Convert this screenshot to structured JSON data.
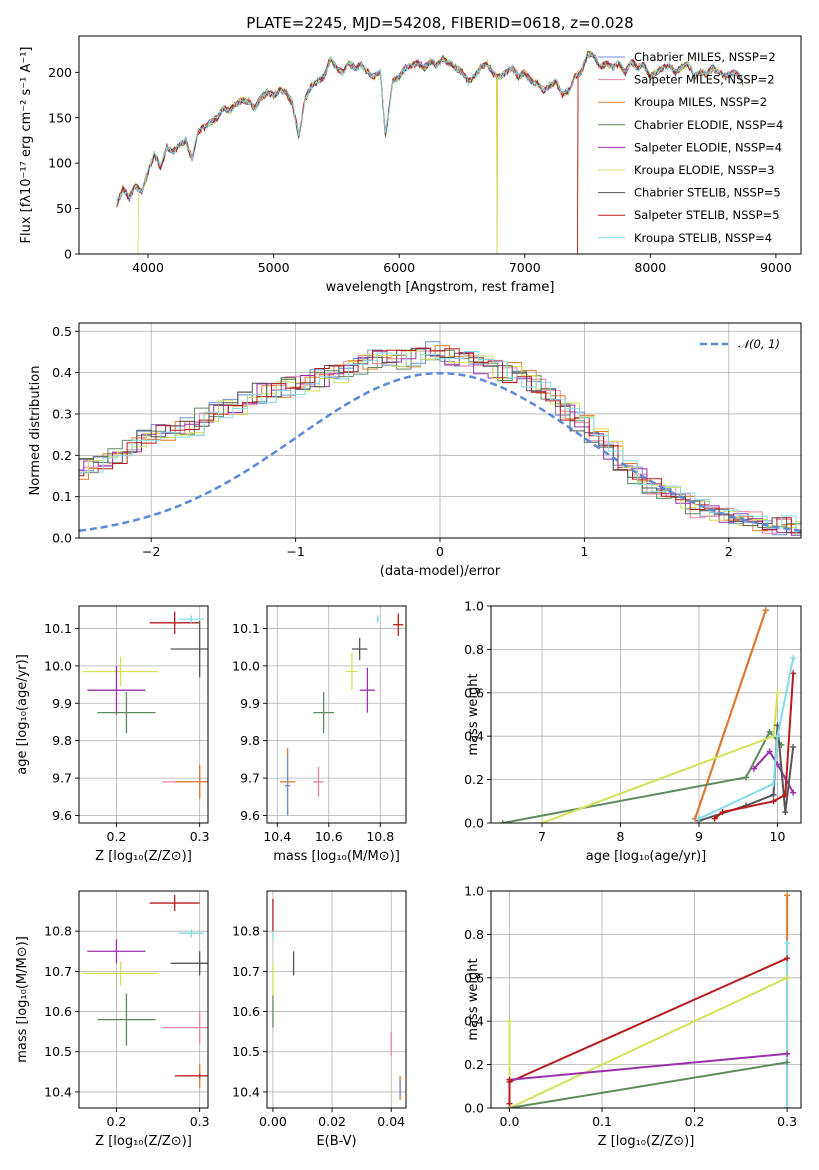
{
  "chart_data": [
    {
      "id": "spectrum",
      "type": "line",
      "title": "PLATE=2245, MJD=54208, FIBERID=0618, z=0.028",
      "xlabel": "wavelength [Angstrom, rest frame]",
      "ylabel": "Flux [f$_\\lambda$10$^{-17}$ erg cm$^{-2}$ s$^{-1}$ A$^{-1}$]",
      "xlim": [
        3450,
        9200
      ],
      "ylim": [
        0,
        240
      ],
      "xticks": [
        4000,
        5000,
        6000,
        7000,
        8000,
        9000
      ],
      "yticks": [
        0,
        50,
        100,
        150,
        200
      ],
      "grid": false,
      "legend": "top-right",
      "x": [
        3750,
        3800,
        3850,
        3900,
        3950,
        4000,
        4050,
        4100,
        4150,
        4200,
        4250,
        4300,
        4350,
        4400,
        4450,
        4500,
        4550,
        4600,
        4650,
        4700,
        4750,
        4800,
        4850,
        4900,
        4950,
        5000,
        5050,
        5100,
        5150,
        5200,
        5250,
        5300,
        5350,
        5400,
        5450,
        5500,
        5550,
        5600,
        5650,
        5700,
        5750,
        5800,
        5850,
        5890,
        5950,
        6000,
        6050,
        6100,
        6150,
        6200,
        6250,
        6300,
        6350,
        6400,
        6450,
        6500,
        6550,
        6600,
        6650,
        6700,
        6750,
        6800,
        6850,
        6900,
        6950,
        7000,
        7050,
        7100,
        7150,
        7200,
        7250,
        7300,
        7350,
        7400,
        7450,
        7500,
        7550,
        7600,
        7650,
        7700,
        7750,
        7800,
        7850,
        7900,
        7950,
        8000,
        8050,
        8100,
        8150,
        8200,
        8250,
        8300,
        8350,
        8400,
        8450,
        8500,
        8550,
        8600,
        8650,
        8700,
        8750
      ],
      "series": [
        {
          "name": "Chabrier MILES, N$_{SSP}$=2",
          "color": "#6e8fd4"
        },
        {
          "name": "Salpeter MILES, N$_{SSP}$=2",
          "color": "#e683a9"
        },
        {
          "name": "Kroupa MILES, N$_{SSP}$=2",
          "color": "#e07b28",
          "spikes": [
            6780,
            7420
          ]
        },
        {
          "name": "Chabrier ELODIE, N$_{SSP}$=4",
          "color": "#5e8a5e"
        },
        {
          "name": "Salpeter ELODIE, N$_{SSP}$=4",
          "color": "#9b2fae"
        },
        {
          "name": "Kroupa ELODIE, N$_{SSP}$=3",
          "color": "#d4e157",
          "spikes": [
            3920,
            6780
          ]
        },
        {
          "name": "Chabrier STELIB, N$_{SSP}$=5",
          "color": "#555555"
        },
        {
          "name": "Salpeter STELIB, N$_{SSP}$=5",
          "color": "#b71c1c",
          "spikes": [
            7420
          ]
        },
        {
          "name": "Kroupa STELIB, N$_{SSP}$=4",
          "color": "#80deea"
        }
      ],
      "flux": [
        55,
        72,
        62,
        75,
        68,
        90,
        110,
        95,
        118,
        112,
        120,
        125,
        105,
        135,
        140,
        145,
        150,
        160,
        158,
        165,
        170,
        168,
        160,
        172,
        178,
        175,
        180,
        178,
        165,
        130,
        170,
        185,
        190,
        195,
        215,
        205,
        200,
        210,
        205,
        208,
        200,
        195,
        200,
        130,
        190,
        195,
        205,
        208,
        210,
        205,
        212,
        208,
        215,
        210,
        205,
        200,
        190,
        195,
        205,
        210,
        198,
        195,
        200,
        205,
        195,
        200,
        190,
        188,
        180,
        185,
        190,
        175,
        180,
        195,
        200,
        220,
        218,
        205,
        210,
        205,
        210,
        200,
        212,
        205,
        208,
        195,
        200,
        205,
        208,
        200,
        205,
        210,
        195,
        200,
        198,
        205,
        200,
        195,
        200,
        198,
        185
      ]
    },
    {
      "id": "residuals",
      "type": "bar",
      "xlabel": "(data-model)/error",
      "ylabel": "Normed distribution",
      "xlim": [
        -2.5,
        2.5
      ],
      "ylim": [
        0,
        0.52
      ],
      "xticks": [
        -2,
        -1,
        0,
        1,
        2
      ],
      "yticks": [
        0.0,
        0.1,
        0.2,
        0.3,
        0.4,
        0.5
      ],
      "grid": true,
      "legend": "top-right",
      "gauss_label": "$\\mathcal{N}(0, 1)$",
      "bin_width": 0.1,
      "hist": [
        0.02,
        0.02,
        0.03,
        0.03,
        0.04,
        0.04,
        0.05,
        0.06,
        0.08,
        0.09,
        0.1,
        0.12,
        0.13,
        0.14,
        0.16,
        0.17,
        0.18,
        0.2,
        0.22,
        0.24,
        0.25,
        0.26,
        0.27,
        0.29,
        0.31,
        0.32,
        0.34,
        0.35,
        0.36,
        0.37,
        0.38,
        0.39,
        0.4,
        0.41,
        0.42,
        0.43,
        0.44,
        0.43,
        0.44,
        0.45,
        0.44,
        0.43,
        0.42,
        0.41,
        0.4,
        0.38,
        0.37,
        0.34,
        0.31,
        0.28,
        0.24,
        0.21,
        0.18,
        0.15,
        0.13,
        0.11,
        0.09,
        0.07,
        0.06,
        0.05,
        0.04,
        0.04,
        0.03,
        0.03,
        0.03,
        0.03,
        0.03,
        0.03,
        0.03,
        0.03,
        0.03,
        0.03,
        0.03,
        0.03,
        0.03,
        0.03,
        0.03,
        0.03,
        0.03,
        0.03
      ]
    },
    {
      "id": "age-vs-Z",
      "type": "scatter",
      "xlabel": "Z [log$_{10}$($Z/Z_\\odot$)]",
      "ylabel": "age  [log$_{10}$($age/yr$)]",
      "xlim": [
        0.155,
        0.31
      ],
      "ylim": [
        9.58,
        10.16
      ],
      "xticks": [
        0.2,
        0.3
      ],
      "yticks": [
        9.6,
        9.7,
        9.8,
        9.9,
        10.0,
        10.1
      ],
      "grid": true,
      "points": [
        {
          "x": 0.27,
          "y": 10.115,
          "xerr": 0.03,
          "yerr": 0.03,
          "color": "#b71c1c"
        },
        {
          "x": 0.29,
          "y": 10.125,
          "xerr": 0.015,
          "yerr": 0.01,
          "color": "#80deea"
        },
        {
          "x": 0.3,
          "y": 10.045,
          "xerr": 0.035,
          "yerr": 0.075,
          "color": "#555555"
        },
        {
          "x": 0.205,
          "y": 9.985,
          "xerr": 0.045,
          "yerr": 0.04,
          "color": "#d4e157"
        },
        {
          "x": 0.2,
          "y": 9.935,
          "xerr": 0.035,
          "yerr": 0.065,
          "color": "#9b2fae"
        },
        {
          "x": 0.212,
          "y": 9.875,
          "xerr": 0.035,
          "yerr": 0.055,
          "color": "#5e8a5e"
        },
        {
          "x": 0.3,
          "y": 9.69,
          "xerr": 0.045,
          "yerr": 0.04,
          "color": "#e683a9"
        },
        {
          "x": 0.3,
          "y": 9.69,
          "xerr": 0.03,
          "yerr": 0.045,
          "color": "#e07b28"
        }
      ]
    },
    {
      "id": "age-vs-mass",
      "type": "scatter",
      "xlabel": "mass [log$_{10}$($M/M_\\odot$)]",
      "ylabel": "",
      "xlim": [
        10.36,
        10.9
      ],
      "ylim": [
        9.58,
        10.16
      ],
      "xticks": [
        10.4,
        10.6,
        10.8
      ],
      "yticks": [
        9.6,
        9.7,
        9.8,
        9.9,
        10.0,
        10.1
      ],
      "grid": true,
      "points": [
        {
          "x": 10.87,
          "y": 10.11,
          "xerr": 0.02,
          "yerr": 0.03,
          "color": "#b71c1c"
        },
        {
          "x": 10.79,
          "y": 10.125,
          "xerr": 0.005,
          "yerr": 0.01,
          "color": "#80deea"
        },
        {
          "x": 10.72,
          "y": 10.045,
          "xerr": 0.03,
          "yerr": 0.03,
          "color": "#555555"
        },
        {
          "x": 10.69,
          "y": 9.985,
          "xerr": 0.025,
          "yerr": 0.05,
          "color": "#d4e157"
        },
        {
          "x": 10.75,
          "y": 9.935,
          "xerr": 0.03,
          "yerr": 0.06,
          "color": "#9b2fae"
        },
        {
          "x": 10.58,
          "y": 9.875,
          "xerr": 0.04,
          "yerr": 0.055,
          "color": "#5e8a5e"
        },
        {
          "x": 10.56,
          "y": 9.69,
          "xerr": 0.02,
          "yerr": 0.04,
          "color": "#e683a9"
        },
        {
          "x": 10.44,
          "y": 9.69,
          "xerr": 0.03,
          "yerr": 0.09,
          "color": "#e07b28"
        },
        {
          "x": 10.44,
          "y": 9.68,
          "xerr": 0.01,
          "yerr": 0.08,
          "color": "#6e8fd4"
        }
      ]
    },
    {
      "id": "mass-weight-vs-age",
      "type": "line",
      "xlabel": "age  [log$_{10}$($age/yr$)]",
      "ylabel": "mass weight",
      "xlim": [
        6.35,
        10.3
      ],
      "ylim": [
        0,
        1.0
      ],
      "xticks": [
        7,
        8,
        9,
        10
      ],
      "yticks": [
        0.0,
        0.2,
        0.4,
        0.6,
        0.8,
        1.0
      ],
      "grid": true,
      "series": [
        {
          "color": "#6e8fd4",
          "x": [
            8.95,
            9.85
          ],
          "y": [
            0.02,
            0.98
          ]
        },
        {
          "color": "#e683a9",
          "x": [
            8.95,
            9.85
          ],
          "y": [
            0.02,
            0.98
          ]
        },
        {
          "color": "#e07b28",
          "x": [
            8.95,
            9.85
          ],
          "y": [
            0.02,
            0.98
          ]
        },
        {
          "color": "#5e8a5e",
          "x": [
            6.5,
            9.6,
            9.9,
            10.05
          ],
          "y": [
            0.0,
            0.21,
            0.42,
            0.36
          ]
        },
        {
          "color": "#9b2fae",
          "x": [
            9.7,
            9.9,
            10.0,
            10.2
          ],
          "y": [
            0.25,
            0.33,
            0.27,
            0.14
          ]
        },
        {
          "color": "#d4e157",
          "x": [
            7.0,
            9.95,
            10.0
          ],
          "y": [
            0.0,
            0.4,
            0.6
          ]
        },
        {
          "color": "#555555",
          "x": [
            9.0,
            9.6,
            9.95,
            10.0,
            10.1,
            10.2
          ],
          "y": [
            0.01,
            0.08,
            0.13,
            0.45,
            0.05,
            0.35
          ]
        },
        {
          "color": "#b71c1c",
          "x": [
            9.2,
            9.3,
            9.95,
            10.1,
            10.2
          ],
          "y": [
            0.02,
            0.05,
            0.1,
            0.13,
            0.69
          ]
        },
        {
          "color": "#80deea",
          "x": [
            9.0,
            9.95,
            10.0,
            10.2
          ],
          "y": [
            0.02,
            0.18,
            0.4,
            0.76
          ]
        }
      ]
    },
    {
      "id": "mass-vs-Z",
      "type": "scatter",
      "xlabel": "Z [log$_{10}$($Z/Z_\\odot$)]",
      "ylabel": "mass [log$_{10}$($M/M_\\odot$)]",
      "xlim": [
        0.155,
        0.31
      ],
      "ylim": [
        10.36,
        10.9
      ],
      "xticks": [
        0.2,
        0.3
      ],
      "yticks": [
        10.4,
        10.5,
        10.6,
        10.7,
        10.8
      ],
      "grid": true,
      "points": [
        {
          "x": 0.27,
          "y": 10.87,
          "xerr": 0.03,
          "yerr": 0.02,
          "color": "#b71c1c"
        },
        {
          "x": 0.29,
          "y": 10.795,
          "xerr": 0.015,
          "yerr": 0.01,
          "color": "#80deea"
        },
        {
          "x": 0.3,
          "y": 10.72,
          "xerr": 0.035,
          "yerr": 0.03,
          "color": "#555555"
        },
        {
          "x": 0.205,
          "y": 10.695,
          "xerr": 0.045,
          "yerr": 0.03,
          "color": "#d4e157"
        },
        {
          "x": 0.2,
          "y": 10.75,
          "xerr": 0.035,
          "yerr": 0.03,
          "color": "#9b2fae"
        },
        {
          "x": 0.212,
          "y": 10.58,
          "xerr": 0.035,
          "yerr": 0.065,
          "color": "#5e8a5e"
        },
        {
          "x": 0.3,
          "y": 10.56,
          "xerr": 0.045,
          "yerr": 0.04,
          "color": "#e683a9"
        },
        {
          "x": 0.3,
          "y": 10.44,
          "xerr": 0.025,
          "yerr": 0.03,
          "color": "#e07b28"
        },
        {
          "x": 0.3,
          "y": 10.44,
          "xerr": 0.03,
          "yerr": 0.005,
          "color": "#b71c1c"
        }
      ]
    },
    {
      "id": "mass-vs-ebv",
      "type": "scatter",
      "xlabel": "E(B-V)",
      "ylabel": "",
      "xlim": [
        -0.002,
        0.045
      ],
      "ylim": [
        10.36,
        10.9
      ],
      "xticks": [
        0.0,
        0.02,
        0.04
      ],
      "yticks": [
        10.4,
        10.5,
        10.6,
        10.7,
        10.8
      ],
      "grid": true,
      "points": [
        {
          "x": 0.0,
          "y": 10.84,
          "xerr": 0,
          "yerr": 0.04,
          "color": "#b71c1c"
        },
        {
          "x": 0.0,
          "y": 10.79,
          "xerr": 0,
          "yerr": 0.01,
          "color": "#80deea"
        },
        {
          "x": 0.007,
          "y": 10.72,
          "xerr": 0,
          "yerr": 0.03,
          "color": "#555555"
        },
        {
          "x": 0.0,
          "y": 10.68,
          "xerr": 0,
          "yerr": 0.04,
          "color": "#d4e157"
        },
        {
          "x": 0.0,
          "y": 10.6,
          "xerr": 0,
          "yerr": 0.04,
          "color": "#5e8a5e"
        },
        {
          "x": 0.04,
          "y": 10.52,
          "xerr": 0,
          "yerr": 0.03,
          "color": "#e683a9"
        },
        {
          "x": 0.043,
          "y": 10.41,
          "xerr": 0,
          "yerr": 0.03,
          "color": "#e07b28"
        },
        {
          "x": 0.043,
          "y": 10.41,
          "xerr": 0,
          "yerr": 0.02,
          "color": "#6e8fd4"
        }
      ]
    },
    {
      "id": "mass-weight-vs-Z",
      "type": "line",
      "xlabel": "Z [log$_{10}$($Z/Z_\\odot$)]",
      "ylabel": "mass weight",
      "xlim": [
        -0.02,
        0.315
      ],
      "ylim": [
        0,
        1.0
      ],
      "xticks": [
        0.0,
        0.1,
        0.2,
        0.3
      ],
      "yticks": [
        0.0,
        0.2,
        0.4,
        0.6,
        0.8,
        1.0
      ],
      "grid": true,
      "series": [
        {
          "color": "#e07b28",
          "x": [
            0.3,
            0.3
          ],
          "y": [
            0.0,
            0.98
          ]
        },
        {
          "color": "#80deea",
          "x": [
            0.3,
            0.3
          ],
          "y": [
            0.0,
            0.76
          ]
        },
        {
          "color": "#b71c1c",
          "x": [
            0.0,
            0.3
          ],
          "y": [
            0.12,
            0.69
          ]
        },
        {
          "color": "#d4e157",
          "x": [
            0.0,
            0.3
          ],
          "y": [
            0.0,
            0.6
          ]
        },
        {
          "color": "#9b2fae",
          "x": [
            0.0,
            0.3
          ],
          "y": [
            0.13,
            0.25
          ]
        },
        {
          "color": "#5e8a5e",
          "x": [
            0.0,
            0.3
          ],
          "y": [
            0.0,
            0.21
          ]
        },
        {
          "color": "#d4e157",
          "x": [
            0.0,
            0.0
          ],
          "y": [
            0.0,
            0.4
          ]
        },
        {
          "color": "#b71c1c",
          "x": [
            0.0,
            0.0
          ],
          "y": [
            0.02,
            0.13
          ]
        }
      ]
    }
  ]
}
